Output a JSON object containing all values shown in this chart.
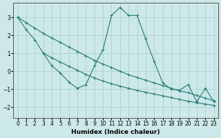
{
  "line1_x": [
    0,
    1,
    2,
    3,
    4,
    5,
    6,
    7,
    8,
    9,
    10,
    11,
    12,
    13,
    14,
    15,
    16,
    17,
    18,
    19,
    20,
    21,
    22,
    23
  ],
  "line1_y": [
    3.0,
    2.3,
    1.75,
    1.0,
    0.3,
    -0.1,
    -0.6,
    -0.95,
    -0.75,
    0.3,
    1.2,
    3.1,
    3.55,
    3.1,
    3.1,
    1.8,
    0.55,
    -0.65,
    -1.0,
    -1.05,
    -0.75,
    -1.7,
    -0.95,
    -1.7
  ],
  "line2_x": [
    0,
    1,
    2,
    3,
    4,
    5,
    6,
    7,
    8,
    9,
    10,
    11,
    12,
    13,
    14,
    15,
    16,
    17,
    18,
    19,
    20,
    21,
    22,
    23
  ],
  "line2_y": [
    3.0,
    2.7,
    2.4,
    2.1,
    1.85,
    1.6,
    1.35,
    1.1,
    0.85,
    0.6,
    0.4,
    0.2,
    0.0,
    -0.2,
    -0.35,
    -0.5,
    -0.65,
    -0.8,
    -0.95,
    -1.1,
    -1.2,
    -1.35,
    -1.5,
    -1.65
  ],
  "line3_x": [
    3,
    4,
    5,
    6,
    7,
    8,
    9,
    10,
    11,
    12,
    13,
    14,
    15,
    16,
    17,
    18,
    19,
    20,
    21,
    22,
    23
  ],
  "line3_y": [
    1.0,
    0.75,
    0.5,
    0.28,
    0.05,
    -0.18,
    -0.38,
    -0.55,
    -0.7,
    -0.83,
    -0.95,
    -1.07,
    -1.17,
    -1.27,
    -1.37,
    -1.47,
    -1.57,
    -1.67,
    -1.75,
    -1.83,
    -1.9
  ],
  "line_color": "#2a7d78",
  "bg_color": "#cce8e8",
  "grid_color": "#b0d4d4",
  "xlabel": "Humidex (Indice chaleur)",
  "xlim": [
    -0.5,
    23.5
  ],
  "ylim": [
    -2.6,
    3.8
  ],
  "yticks": [
    -2,
    -1,
    0,
    1,
    2,
    3
  ],
  "xticks": [
    0,
    1,
    2,
    3,
    4,
    5,
    6,
    7,
    8,
    9,
    10,
    11,
    12,
    13,
    14,
    15,
    16,
    17,
    18,
    19,
    20,
    21,
    22,
    23
  ]
}
